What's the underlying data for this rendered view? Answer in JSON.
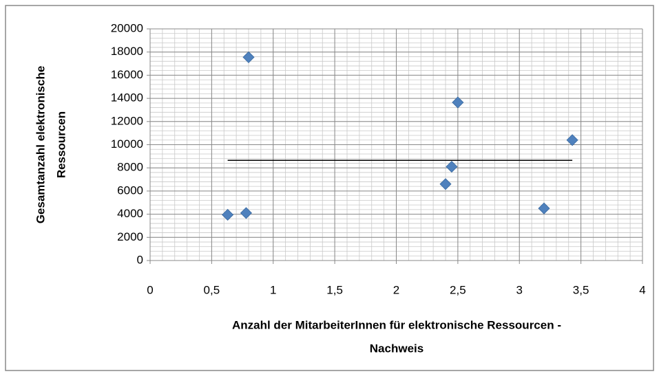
{
  "chart_data": {
    "type": "scatter",
    "y_label": [
      "Gesamtanzahl elektronische",
      "Ressourcen"
    ],
    "x_label": [
      "Anzahl der MitarbeiterInnen für elektronische Ressourcen -",
      "Nachweis"
    ],
    "series": [
      {
        "color": "#4f81bd",
        "x": [
          0.63,
          0.78,
          0.8,
          2.4,
          2.45,
          2.5,
          3.2,
          3.43
        ],
        "values": [
          3950,
          4100,
          17550,
          6600,
          8100,
          13650,
          4500,
          10400
        ]
      }
    ],
    "trendline": {
      "color": "#000000",
      "x": [
        0.63,
        3.43
      ],
      "values": [
        8650,
        8650
      ]
    },
    "xlim": [
      0,
      4
    ],
    "xticks": [
      {
        "value": 0,
        "label": "0"
      },
      {
        "value": 0.5,
        "label": "0,5"
      },
      {
        "value": 1,
        "label": "1"
      },
      {
        "value": 1.5,
        "label": "1,5"
      },
      {
        "value": 2,
        "label": "2"
      },
      {
        "value": 2.5,
        "label": "2,5"
      },
      {
        "value": 3,
        "label": "3"
      },
      {
        "value": 3.5,
        "label": "3,5"
      },
      {
        "value": 4,
        "label": "4"
      }
    ],
    "ylim": [
      0,
      20000
    ],
    "yticks": [
      0,
      2000,
      4000,
      6000,
      8000,
      10000,
      12000,
      14000,
      16000,
      18000,
      20000
    ],
    "grid": true,
    "x_minor_step": 0.1,
    "y_minor_step": 400
  }
}
